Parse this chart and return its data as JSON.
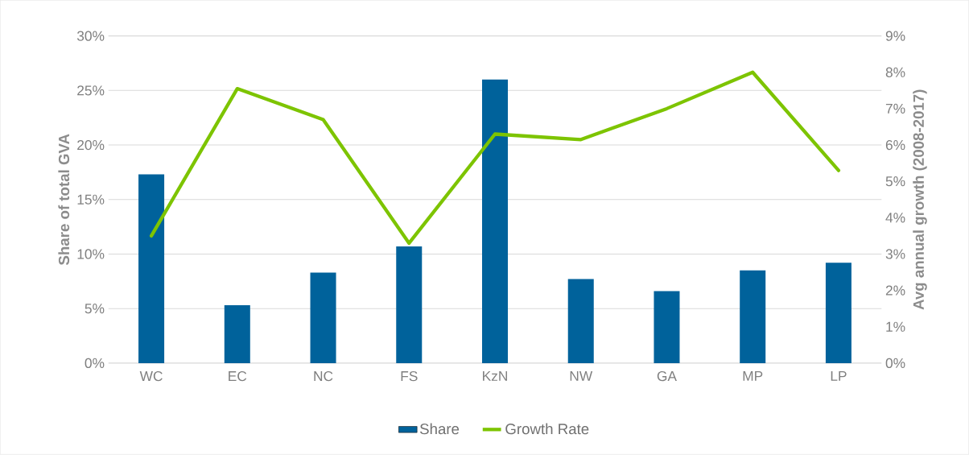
{
  "chart_data": {
    "type": "bar",
    "categories": [
      "WC",
      "EC",
      "NC",
      "FS",
      "KzN",
      "NW",
      "GA",
      "MP",
      "LP"
    ],
    "ylabel": "Share of total GVA",
    "y2label": "Avg annual growth (2008-2017)",
    "series": [
      {
        "name": "Share",
        "color": "#00629b",
        "values": [
          17.3,
          5.3,
          8.3,
          10.7,
          26.0,
          7.7,
          6.6,
          8.5,
          9.2
        ]
      },
      {
        "name": "Growth Rate",
        "type": "line",
        "axis": "y2",
        "color": "#7dc400",
        "values": [
          3.5,
          7.55,
          6.7,
          3.3,
          6.3,
          6.15,
          7.0,
          8.0,
          5.3
        ]
      }
    ],
    "ylim": [
      0,
      30
    ],
    "yticks": [
      {
        "value": 0,
        "label": "0%"
      },
      {
        "value": 5,
        "label": "5%"
      },
      {
        "value": 10,
        "label": "10%"
      },
      {
        "value": 15,
        "label": "15%"
      },
      {
        "value": 20,
        "label": "20%"
      },
      {
        "value": 25,
        "label": "25%"
      },
      {
        "value": 30,
        "label": "30%"
      }
    ],
    "y2lim": [
      0,
      9
    ],
    "y2ticks": [
      {
        "value": 0,
        "label": "0%"
      },
      {
        "value": 1,
        "label": "1%"
      },
      {
        "value": 2,
        "label": "2%"
      },
      {
        "value": 3,
        "label": "3%"
      },
      {
        "value": 4,
        "label": "4%"
      },
      {
        "value": 5,
        "label": "5%"
      },
      {
        "value": 6,
        "label": "6%"
      },
      {
        "value": 7,
        "label": "7%"
      },
      {
        "value": 8,
        "label": "8%"
      },
      {
        "value": 9,
        "label": "9%"
      }
    ],
    "grid": "y",
    "legend": "bottom",
    "marker": "none"
  }
}
